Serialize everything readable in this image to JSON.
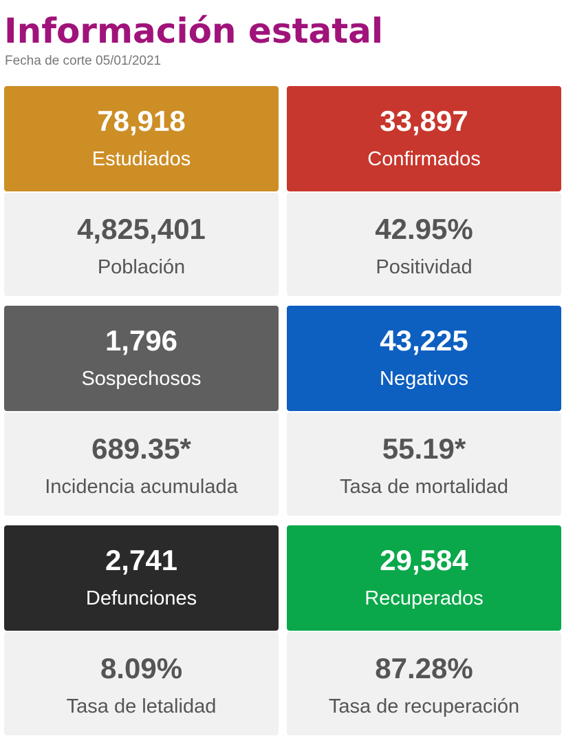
{
  "header": {
    "title": "Información estatal",
    "cutoff_date": "Fecha de corte 05/01/2021"
  },
  "colors": {
    "title": "#a0137a",
    "estudiados": "#cd8e26",
    "confirmados": "#c8372d",
    "sospechosos": "#5f5f5f",
    "negativos": "#0d5fc0",
    "defunciones": "#2a2a2a",
    "recuperados": "#0aa84a",
    "stat_panel": "#f1f1f1"
  },
  "cards": [
    {
      "top": {
        "value": "78,918",
        "label": "Estudiados"
      },
      "bottom": {
        "value": "4,825,401",
        "label": "Población"
      }
    },
    {
      "top": {
        "value": "33,897",
        "label": "Confirmados"
      },
      "bottom": {
        "value": "42.95%",
        "label": "Positividad"
      }
    },
    {
      "top": {
        "value": "1,796",
        "label": "Sospechosos"
      },
      "bottom": {
        "value": "689.35*",
        "label": "Incidencia acumulada"
      }
    },
    {
      "top": {
        "value": "43,225",
        "label": "Negativos"
      },
      "bottom": {
        "value": "55.19*",
        "label": "Tasa de mortalidad"
      }
    },
    {
      "top": {
        "value": "2,741",
        "label": "Defunciones"
      },
      "bottom": {
        "value": "8.09%",
        "label": "Tasa de letalidad"
      }
    },
    {
      "top": {
        "value": "29,584",
        "label": "Recuperados"
      },
      "bottom": {
        "value": "87.28%",
        "label": "Tasa de recuperación"
      }
    }
  ]
}
